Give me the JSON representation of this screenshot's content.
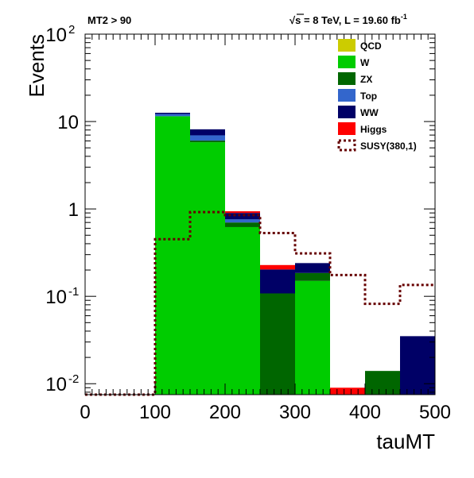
{
  "chart_data": {
    "type": "bar",
    "stacked": true,
    "log_scale_y": true,
    "title_left": "MT2 > 90",
    "title_right": {
      "sqrt_symbol": "√",
      "s_letter": "s",
      "main": " = 8 TeV, L = 19.60 fb",
      "superscript": "-1"
    },
    "xlabel": "tauMT",
    "ylabel": "Events",
    "xlim": [
      0,
      500
    ],
    "ylim": [
      0.0075,
      100
    ],
    "x_ticks": [
      {
        "value": 0,
        "label": "0"
      },
      {
        "value": 100,
        "label": "100"
      },
      {
        "value": 200,
        "label": "200"
      },
      {
        "value": 300,
        "label": "300"
      },
      {
        "value": 400,
        "label": "400"
      },
      {
        "value": 500,
        "label": "500"
      }
    ],
    "y_ticks": [
      {
        "value": 0.01,
        "base": "10",
        "exp": "-2"
      },
      {
        "value": 0.1,
        "base": "10",
        "exp": "-1"
      },
      {
        "value": 1,
        "base": "1",
        "exp": ""
      },
      {
        "value": 10,
        "base": "10",
        "exp": ""
      },
      {
        "value": 100,
        "base": "10",
        "exp": "2"
      }
    ],
    "bin_edges": [
      0,
      50,
      100,
      150,
      200,
      250,
      300,
      350,
      400,
      450,
      500
    ],
    "series": [
      {
        "name": "QCD",
        "color": "#cccc00",
        "values": [
          0,
          0,
          0,
          0,
          0,
          0,
          0,
          0,
          0,
          0
        ]
      },
      {
        "name": "W",
        "color": "#00cc00",
        "values": [
          0,
          0,
          11.5,
          5.8,
          0.62,
          0,
          0.15,
          0,
          0,
          0
        ]
      },
      {
        "name": "ZX",
        "color": "#006600",
        "values": [
          0,
          0,
          0,
          0.25,
          0.08,
          0.108,
          0.035,
          0,
          0.014,
          0
        ]
      },
      {
        "name": "Top",
        "color": "#3366cc",
        "values": [
          0,
          0,
          0.7,
          0.9,
          0.06,
          0,
          0,
          0,
          0,
          0
        ]
      },
      {
        "name": "WW",
        "color": "#000066",
        "values": [
          0,
          0,
          0.4,
          1.2,
          0.14,
          0.095,
          0.055,
          0,
          0,
          0.035
        ]
      },
      {
        "name": "Higgs",
        "color": "#ff0000",
        "values": [
          0,
          0,
          0,
          0,
          0.04,
          0.025,
          0,
          0.009,
          0,
          0
        ]
      }
    ],
    "overlay": {
      "name": "SUSY(380,1)",
      "color": "#660000",
      "style": "dotted",
      "values": [
        0.0075,
        0.0075,
        0.45,
        0.92,
        0.85,
        0.53,
        0.31,
        0.175,
        0.082,
        0.135
      ]
    },
    "legend_position": "top-right"
  }
}
